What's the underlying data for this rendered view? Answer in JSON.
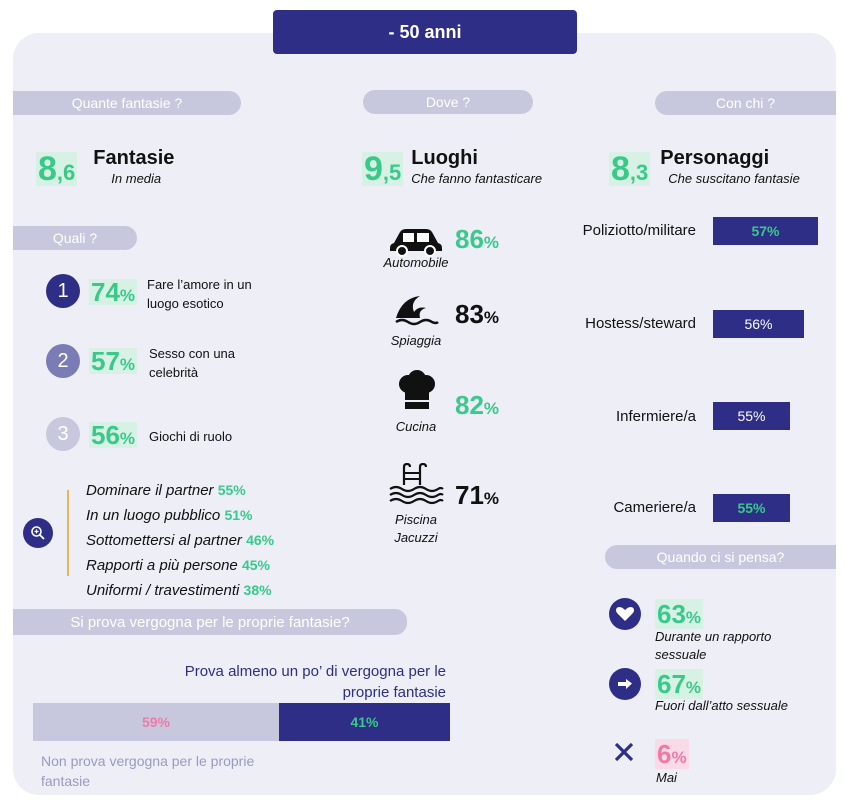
{
  "header": {
    "title": "- 50 anni"
  },
  "sections": {
    "quante": "Quante fantasie ?",
    "dove": "Dove ?",
    "con_chi": "Con chi ?",
    "quali": "Quali ?",
    "quando": "Quando ci si pensa?",
    "vergogna": "Si prova vergogna per le proprie fantasie?"
  },
  "stats": {
    "fantasie": {
      "int": "8",
      "dec": ",6",
      "title": "Fantasie",
      "sub": "In media"
    },
    "luoghi": {
      "int": "9",
      "dec": ",5",
      "title": "Luoghi",
      "sub": "Che fanno fantasticare"
    },
    "personaggi": {
      "int": "8",
      "dec": ",3",
      "title": "Personaggi",
      "sub": "Che suscitano fantasie"
    }
  },
  "quali": [
    {
      "rank": "1",
      "num": "74",
      "unit": "%",
      "text1": "Fare l’amore in un",
      "text2": "luogo esotico"
    },
    {
      "rank": "2",
      "num": "57",
      "unit": "%",
      "text1": "Sesso con una",
      "text2": "celebrità"
    },
    {
      "rank": "3",
      "num": "56",
      "unit": "%",
      "text1": "Giochi di ruolo",
      "text2": ""
    }
  ],
  "others": [
    {
      "label": "Dominare il partner",
      "pct": "55%"
    },
    {
      "label": "In un luogo pubblico",
      "pct": "51%"
    },
    {
      "label": "Sottomettersi al partner",
      "pct": "46%"
    },
    {
      "label": "Rapporti a più persone",
      "pct": "45%"
    },
    {
      "label": "Uniformi / travestimenti",
      "pct": "38%"
    }
  ],
  "places": [
    {
      "icon": "car-icon",
      "label": "Automobile",
      "num": "86",
      "unit": "%"
    },
    {
      "icon": "wave-icon",
      "label": "Spiaggia",
      "num": "83",
      "unit": "%"
    },
    {
      "icon": "chef-hat-icon",
      "label": "Cucina",
      "num": "82",
      "unit": "%"
    },
    {
      "icon": "pool-icon",
      "label1": "Piscina",
      "label2": "Jacuzzi",
      "num": "71",
      "unit": "%"
    }
  ],
  "who": [
    {
      "label": "Poliziotto/militare",
      "pct": "57%",
      "value": 57
    },
    {
      "label": "Hostess/steward",
      "pct": "56%",
      "value": 56
    },
    {
      "label": "Infermiere/a",
      "pct": "55%",
      "value": 55
    },
    {
      "label": "Cameriere/a",
      "pct": "55%",
      "value": 55
    }
  ],
  "when": [
    {
      "icon": "heart-icon",
      "num": "63",
      "unit": "%",
      "text1": "Durante un rapporto",
      "text2": "sessuale"
    },
    {
      "icon": "arrow-icon",
      "num": "67",
      "unit": "%",
      "text1": "Fuori dall’atto sessuale",
      "text2": ""
    },
    {
      "icon": "cross-icon",
      "num": "6",
      "unit": "%",
      "text1": "Mai",
      "text2": ""
    }
  ],
  "vergogna": {
    "yes_label1": "Prova almeno un po’ di vergogna per le",
    "yes_label2": "proprie fantasie",
    "no_label1": "Non prova vergogna per le proprie",
    "no_label2": "fantasie",
    "no_pct": "59%",
    "yes_pct": "41%",
    "no_value": 59,
    "yes_value": 41
  },
  "colors": {
    "navy": "#2e2e86",
    "green": "#38c98b",
    "pink": "#ef7aa8",
    "pill": "#c7c8dd",
    "panel": "#edeef6"
  }
}
